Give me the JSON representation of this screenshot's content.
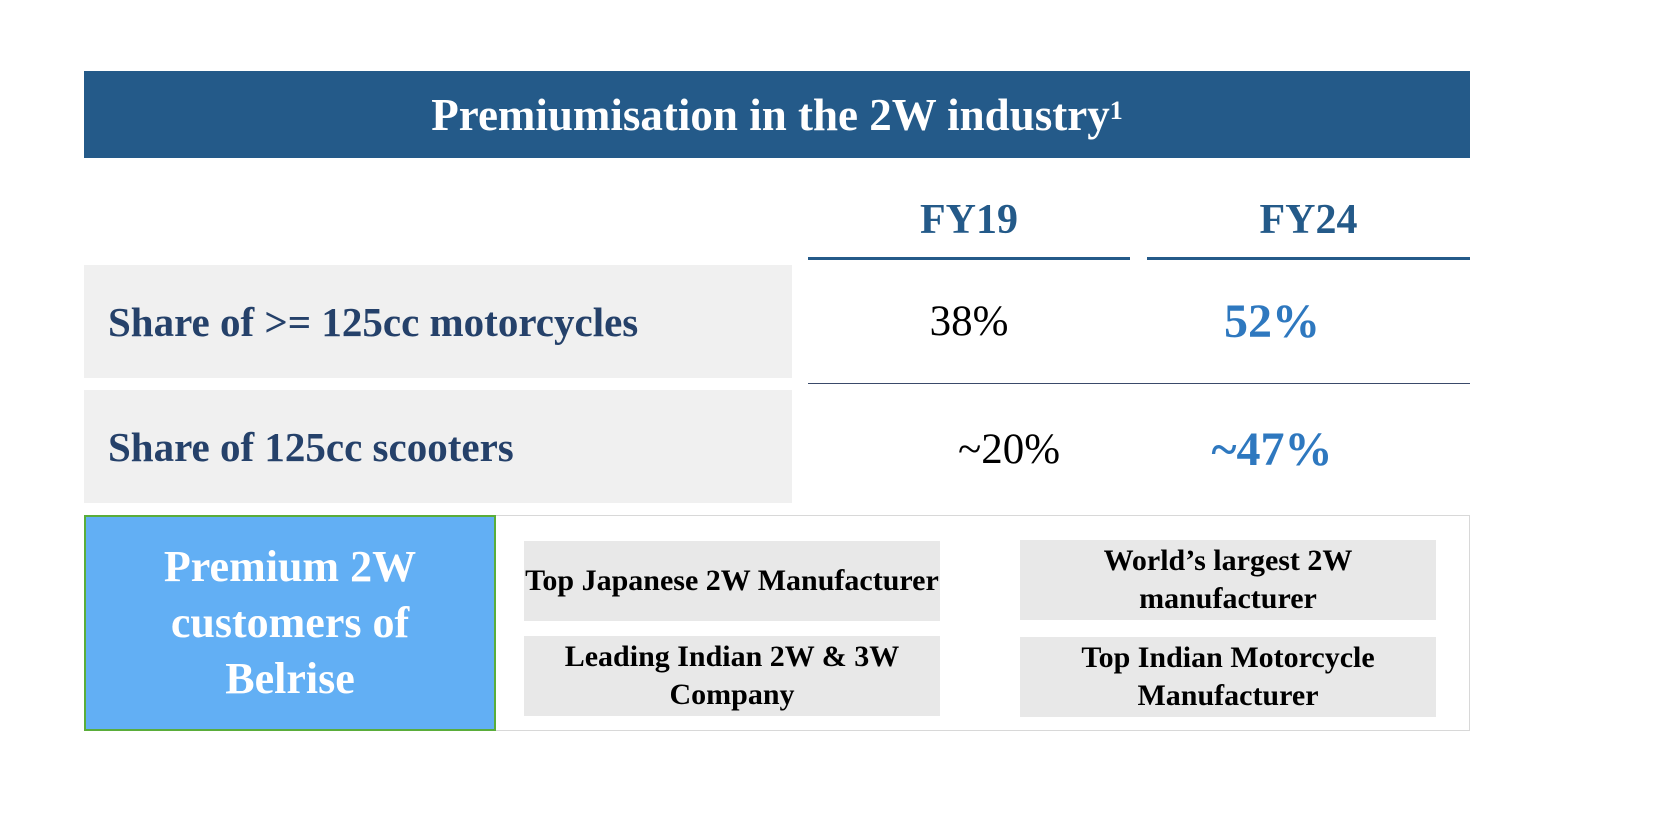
{
  "title": {
    "text": "Premiumisation in the 2W industry",
    "footnote": "1"
  },
  "columns": [
    "FY19",
    "FY24"
  ],
  "rows": [
    {
      "label": "Share of  >= 125cc motorcycles",
      "fy19": "38%",
      "fy24": "52%"
    },
    {
      "label": "Share of  125cc scooters",
      "fy19": "~20%",
      "fy24": "~47%"
    }
  ],
  "customers": {
    "heading": "Premium 2W customers of Belrise",
    "items": [
      "Top Japanese 2W Manufacturer",
      "World’s largest 2W manufacturer",
      "Leading Indian 2W & 3W Company",
      "Top Indian Motorcycle Manufacturer"
    ]
  },
  "colors": {
    "header": "#245a89",
    "highlight": "#2e78bf",
    "premium_box": "#62aff4"
  }
}
